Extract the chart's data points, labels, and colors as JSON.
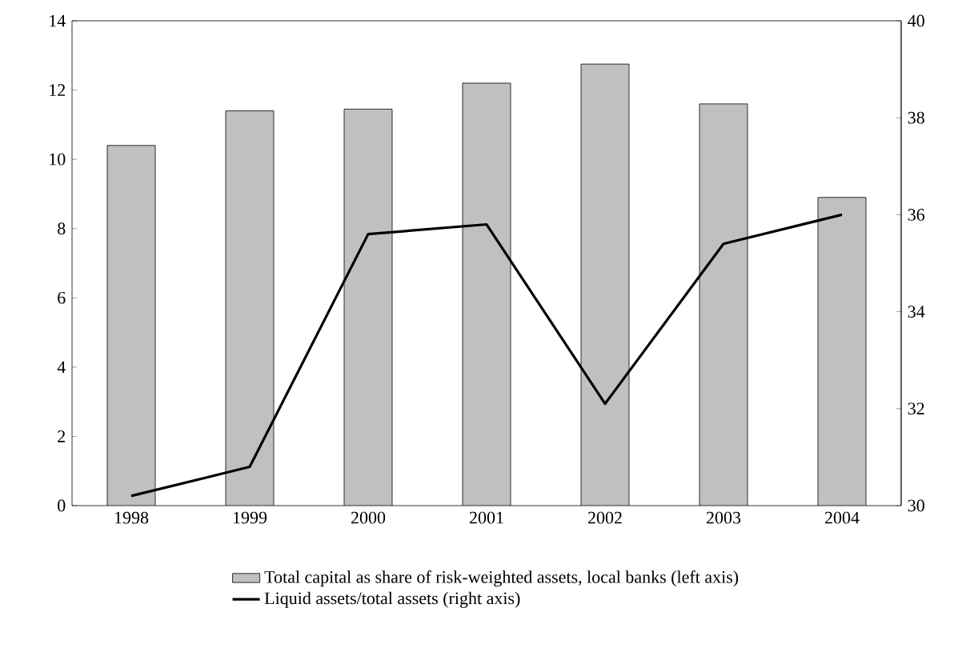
{
  "chart_data": {
    "type": "bar",
    "categories": [
      "1998",
      "1999",
      "2000",
      "2001",
      "2002",
      "2003",
      "2004"
    ],
    "series": [
      {
        "name": "Total capital as share of risk-weighted assets, local banks (left axis)",
        "color": "#c0c0c0",
        "values": [
          10.4,
          11.4,
          11.45,
          12.2,
          12.75,
          11.6,
          8.9
        ]
      },
      {
        "name": "Liquid assets/total assets (right axis)",
        "type": "line",
        "axis": "y2",
        "color": "#000000",
        "values": [
          30.2,
          30.8,
          35.6,
          35.8,
          32.1,
          35.4,
          36.0
        ]
      }
    ],
    "ylim": [
      0,
      14
    ],
    "yticks": [
      0,
      2,
      4,
      6,
      8,
      10,
      12,
      14
    ],
    "y2lim": [
      30,
      40
    ],
    "y2ticks": [
      30,
      32,
      34,
      36,
      38,
      40
    ],
    "grid": false,
    "legend": "bottom",
    "marker": "none",
    "line_style": "solid"
  }
}
